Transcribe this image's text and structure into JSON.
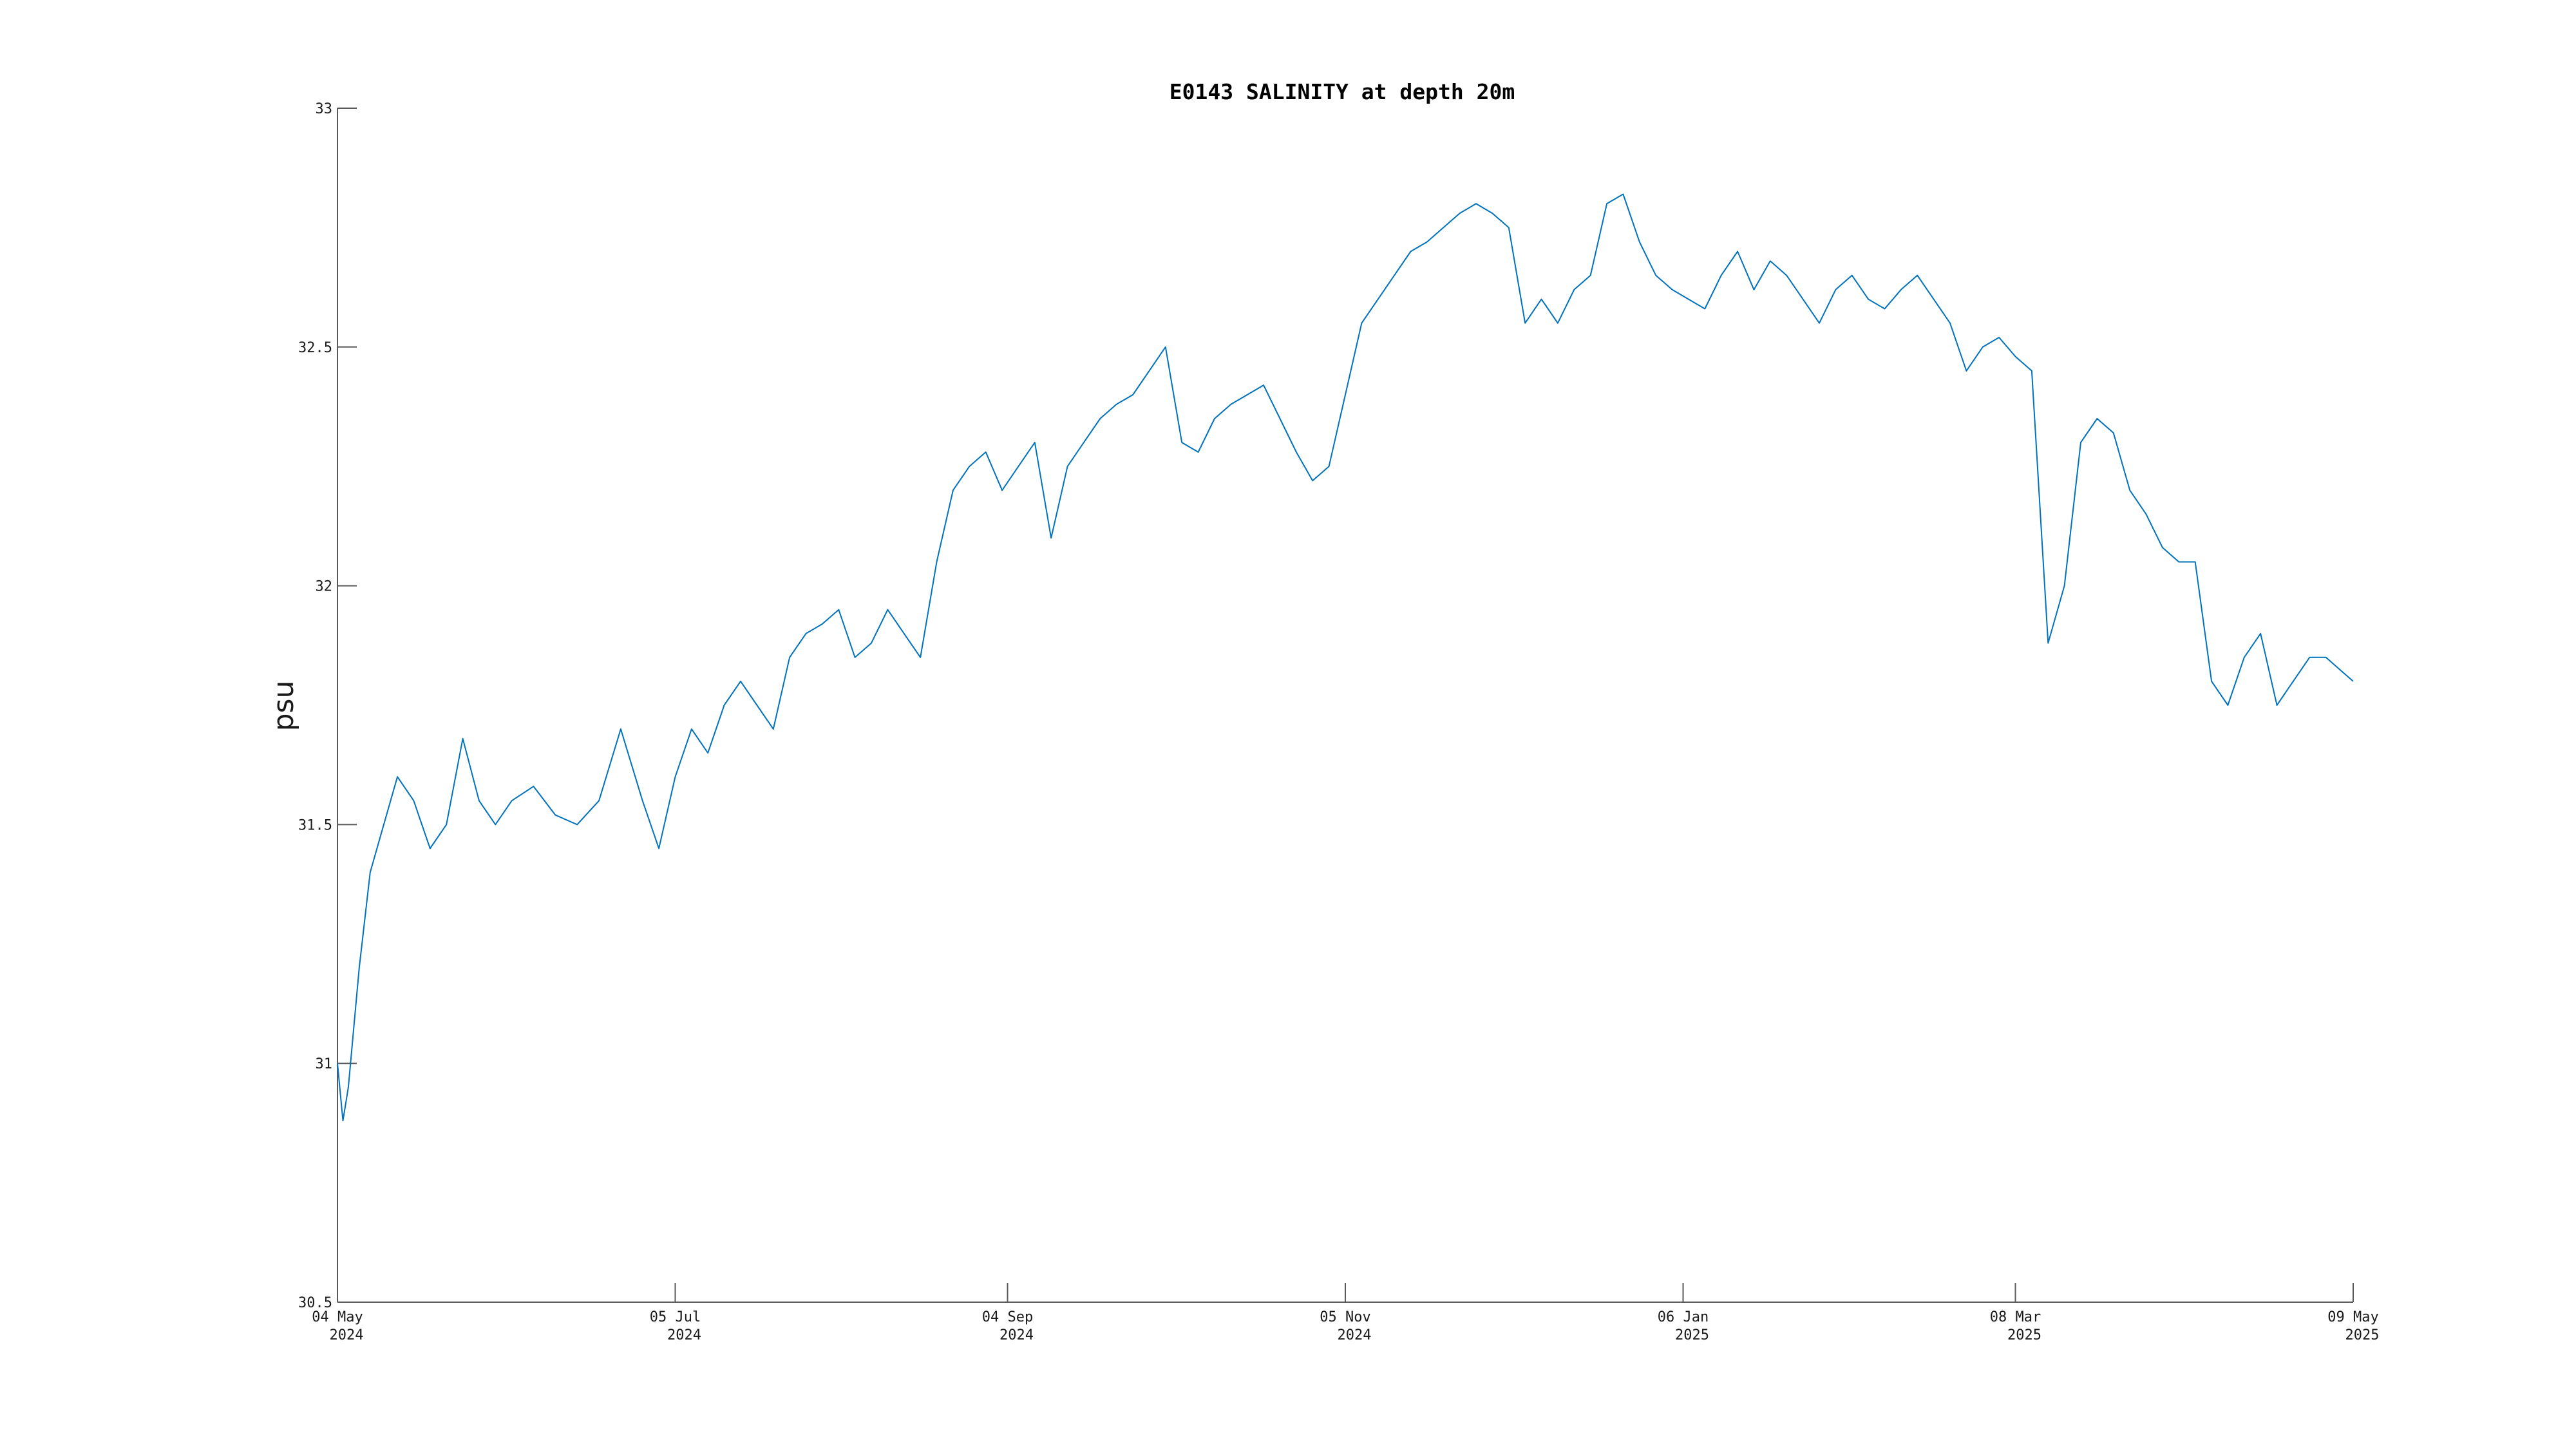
{
  "chart_data": {
    "type": "line",
    "title": "E0143 SALINITY at depth 20m",
    "xlabel": "",
    "ylabel": "psu",
    "ylim": [
      30.5,
      33
    ],
    "xlim": [
      "2024-05-04",
      "2025-05-09"
    ],
    "grid": false,
    "yticks": [
      {
        "value": 30.5,
        "label": "30.5"
      },
      {
        "value": 31,
        "label": "31"
      },
      {
        "value": 31.5,
        "label": "31.5"
      },
      {
        "value": 32,
        "label": "32"
      },
      {
        "value": 32.5,
        "label": "32.5"
      },
      {
        "value": 33,
        "label": "33"
      }
    ],
    "xticks": [
      {
        "date": "2024-05-04",
        "line1": "04 May",
        "line2": "2024"
      },
      {
        "date": "2024-07-05",
        "line1": "05 Jul",
        "line2": "2024"
      },
      {
        "date": "2024-09-04",
        "line1": "04 Sep",
        "line2": "2024"
      },
      {
        "date": "2024-11-05",
        "line1": "05 Nov",
        "line2": "2024"
      },
      {
        "date": "2025-01-06",
        "line1": "06 Jan",
        "line2": "2025"
      },
      {
        "date": "2025-03-08",
        "line1": "08 Mar",
        "line2": "2025"
      },
      {
        "date": "2025-05-09",
        "line1": "09 May",
        "line2": "2025"
      }
    ],
    "series": [
      {
        "color": "#0072BD",
        "x": [
          "2024-05-04",
          "2024-05-05",
          "2024-05-06",
          "2024-05-08",
          "2024-05-10",
          "2024-05-12",
          "2024-05-15",
          "2024-05-18",
          "2024-05-21",
          "2024-05-24",
          "2024-05-27",
          "2024-05-30",
          "2024-06-02",
          "2024-06-05",
          "2024-06-09",
          "2024-06-13",
          "2024-06-17",
          "2024-06-21",
          "2024-06-25",
          "2024-06-29",
          "2024-07-02",
          "2024-07-05",
          "2024-07-08",
          "2024-07-11",
          "2024-07-14",
          "2024-07-17",
          "2024-07-20",
          "2024-07-23",
          "2024-07-26",
          "2024-07-29",
          "2024-08-01",
          "2024-08-04",
          "2024-08-07",
          "2024-08-10",
          "2024-08-13",
          "2024-08-16",
          "2024-08-19",
          "2024-08-22",
          "2024-08-25",
          "2024-08-28",
          "2024-08-31",
          "2024-09-03",
          "2024-09-06",
          "2024-09-09",
          "2024-09-12",
          "2024-09-15",
          "2024-09-18",
          "2024-09-21",
          "2024-09-24",
          "2024-09-27",
          "2024-09-30",
          "2024-10-03",
          "2024-10-06",
          "2024-10-09",
          "2024-10-12",
          "2024-10-15",
          "2024-10-18",
          "2024-10-21",
          "2024-10-24",
          "2024-10-27",
          "2024-10-30",
          "2024-11-02",
          "2024-11-05",
          "2024-11-08",
          "2024-11-11",
          "2024-11-14",
          "2024-11-17",
          "2024-11-20",
          "2024-11-23",
          "2024-11-26",
          "2024-11-29",
          "2024-12-02",
          "2024-12-05",
          "2024-12-08",
          "2024-12-11",
          "2024-12-14",
          "2024-12-17",
          "2024-12-20",
          "2024-12-23",
          "2024-12-26",
          "2024-12-29",
          "2025-01-01",
          "2025-01-04",
          "2025-01-07",
          "2025-01-10",
          "2025-01-13",
          "2025-01-16",
          "2025-01-19",
          "2025-01-22",
          "2025-01-25",
          "2025-01-28",
          "2025-01-31",
          "2025-02-03",
          "2025-02-06",
          "2025-02-09",
          "2025-02-12",
          "2025-02-15",
          "2025-02-18",
          "2025-02-21",
          "2025-02-24",
          "2025-02-27",
          "2025-03-02",
          "2025-03-05",
          "2025-03-08",
          "2025-03-11",
          "2025-03-14",
          "2025-03-17",
          "2025-03-20",
          "2025-03-23",
          "2025-03-26",
          "2025-03-29",
          "2025-04-01",
          "2025-04-04",
          "2025-04-07",
          "2025-04-10",
          "2025-04-13",
          "2025-04-16",
          "2025-04-19",
          "2025-04-22",
          "2025-04-25",
          "2025-04-28",
          "2025-05-01",
          "2025-05-04",
          "2025-05-07",
          "2025-05-09"
        ],
        "y": [
          31.0,
          30.88,
          30.95,
          31.2,
          31.4,
          31.48,
          31.6,
          31.55,
          31.45,
          31.5,
          31.68,
          31.55,
          31.5,
          31.55,
          31.58,
          31.52,
          31.5,
          31.55,
          31.7,
          31.55,
          31.45,
          31.6,
          31.7,
          31.65,
          31.75,
          31.8,
          31.75,
          31.7,
          31.85,
          31.9,
          31.92,
          31.95,
          31.85,
          31.88,
          31.95,
          31.9,
          31.85,
          32.05,
          32.2,
          32.25,
          32.28,
          32.2,
          32.25,
          32.3,
          32.1,
          32.25,
          32.3,
          32.35,
          32.38,
          32.4,
          32.45,
          32.5,
          32.3,
          32.28,
          32.35,
          32.38,
          32.4,
          32.42,
          32.35,
          32.28,
          32.22,
          32.25,
          32.4,
          32.55,
          32.6,
          32.65,
          32.7,
          32.72,
          32.75,
          32.78,
          32.8,
          32.78,
          32.75,
          32.55,
          32.6,
          32.55,
          32.62,
          32.65,
          32.8,
          32.82,
          32.72,
          32.65,
          32.62,
          32.6,
          32.58,
          32.65,
          32.7,
          32.62,
          32.68,
          32.65,
          32.6,
          32.55,
          32.62,
          32.65,
          32.6,
          32.58,
          32.62,
          32.65,
          32.6,
          32.55,
          32.45,
          32.5,
          32.52,
          32.48,
          32.45,
          31.88,
          32.0,
          32.3,
          32.35,
          32.32,
          32.2,
          32.15,
          32.08,
          32.05,
          32.05,
          31.8,
          31.75,
          31.85,
          31.9,
          31.75,
          31.8,
          31.85,
          31.85,
          31.82,
          31.8
        ]
      }
    ]
  }
}
